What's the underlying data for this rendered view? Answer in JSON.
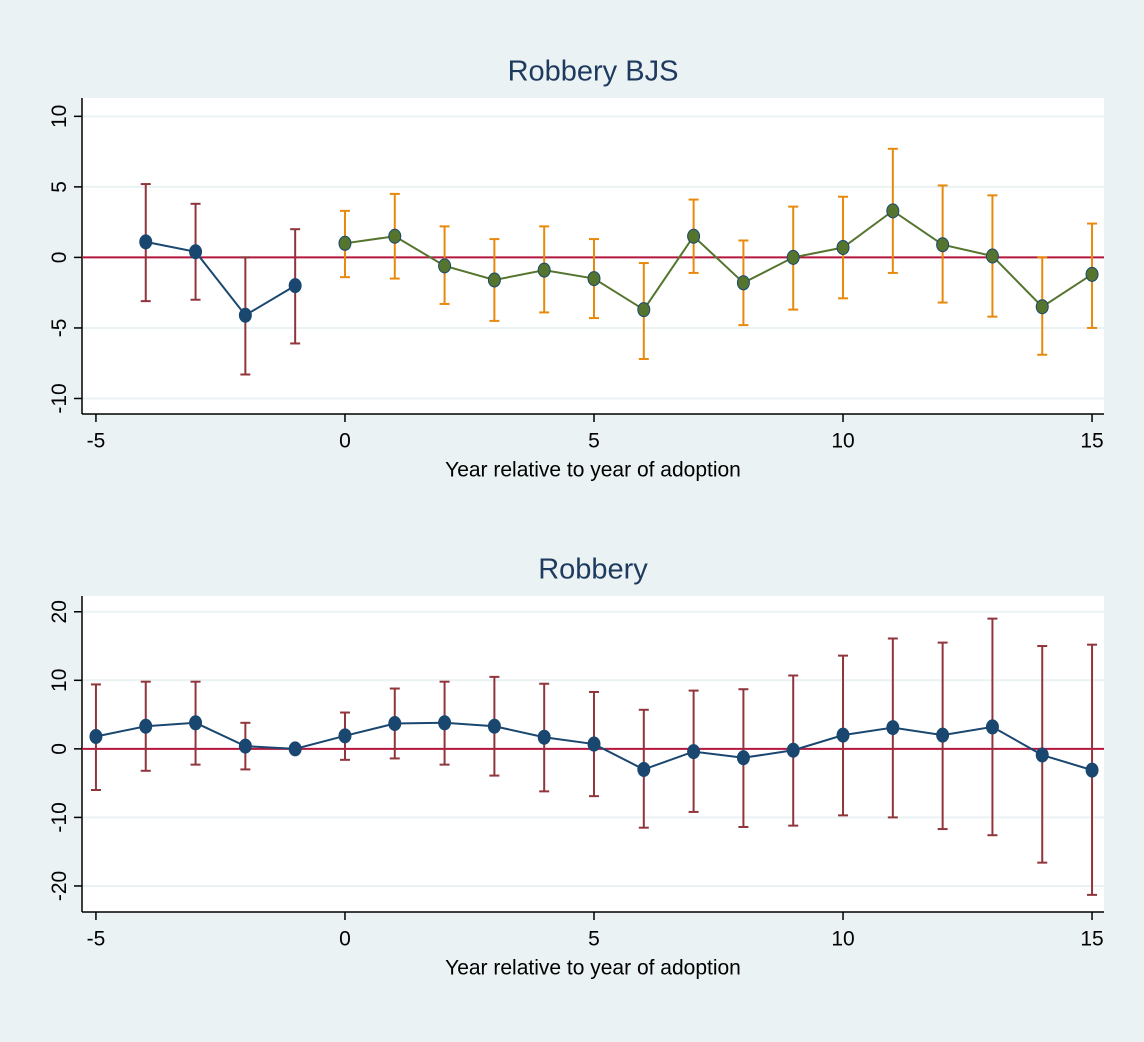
{
  "chart_data": [
    {
      "type": "line",
      "title": "Robbery BJS",
      "x_label": "Year relative to year of adoption",
      "xlim": [
        -5.28,
        15.24
      ],
      "xticks": [
        -5,
        0,
        5,
        10,
        15
      ],
      "ylim": [
        -11.1,
        11.3
      ],
      "yticks": [
        -10,
        -5,
        0,
        5,
        10
      ],
      "grid": true,
      "hline": 0,
      "hline_color": "#b5173f",
      "series": [
        {
          "color": "#1a476f",
          "ci_color": "#90353b",
          "x": [
            -4,
            -3,
            -2,
            -1
          ],
          "values": [
            1.1,
            0.4,
            -4.1,
            -2.0
          ],
          "lower": [
            -3.1,
            -3.0,
            -8.3,
            -6.1
          ],
          "upper": [
            5.2,
            3.8,
            0.0,
            2.0
          ]
        },
        {
          "color": "#55752f",
          "ci_color": "#e8890c",
          "x": [
            0,
            1,
            2,
            3,
            4,
            5,
            6,
            7,
            8,
            9,
            10,
            11,
            12,
            13,
            14,
            15
          ],
          "values": [
            1.0,
            1.5,
            -0.6,
            -1.6,
            -0.9,
            -1.5,
            -3.7,
            1.5,
            -1.8,
            0.0,
            0.7,
            3.3,
            0.9,
            0.1,
            -3.5,
            -1.2
          ],
          "lower": [
            -1.4,
            -1.5,
            -3.3,
            -4.5,
            -3.9,
            -4.3,
            -7.2,
            -1.1,
            -4.8,
            -3.7,
            -2.9,
            -1.1,
            -3.2,
            -4.2,
            -6.9,
            -5.0
          ],
          "upper": [
            3.3,
            4.5,
            2.2,
            1.3,
            2.2,
            1.3,
            -0.4,
            4.1,
            1.2,
            3.6,
            4.3,
            7.7,
            5.1,
            4.4,
            0.0,
            2.4
          ]
        }
      ]
    },
    {
      "type": "line",
      "title": "Robbery",
      "x_label": "Year relative to year of adoption",
      "xlim": [
        -5.28,
        15.24
      ],
      "xticks": [
        -5,
        0,
        5,
        10,
        15
      ],
      "ylim": [
        -23.8,
        22.3
      ],
      "yticks": [
        -20,
        -10,
        0,
        10,
        20
      ],
      "grid": true,
      "hline": 0,
      "hline_color": "#b5173f",
      "series": [
        {
          "color": "#1a476f",
          "ci_color": "#90353b",
          "x": [
            -5,
            -4,
            -3,
            -2,
            -1,
            0,
            1,
            2,
            3,
            4,
            5,
            6,
            7,
            8,
            9,
            10,
            11,
            12,
            13,
            14,
            15
          ],
          "values": [
            1.8,
            3.3,
            3.8,
            0.4,
            0.0,
            1.9,
            3.7,
            3.8,
            3.3,
            1.7,
            0.7,
            -3.0,
            -0.4,
            -1.3,
            -0.2,
            2.0,
            3.1,
            2.0,
            3.2,
            -0.9,
            -3.1
          ],
          "lower": [
            -6.0,
            -3.2,
            -2.3,
            -3.0,
            null,
            -1.6,
            -1.4,
            -2.3,
            -3.9,
            -6.2,
            -6.9,
            -11.5,
            -9.2,
            -11.4,
            -11.2,
            -9.7,
            -10.0,
            -11.7,
            -12.6,
            -16.6,
            -21.3
          ],
          "upper": [
            9.4,
            9.8,
            9.8,
            3.8,
            null,
            5.3,
            8.8,
            9.8,
            10.5,
            9.5,
            8.3,
            5.7,
            8.5,
            8.7,
            10.7,
            13.6,
            16.1,
            15.5,
            19.0,
            15.0,
            15.2
          ]
        }
      ]
    }
  ]
}
